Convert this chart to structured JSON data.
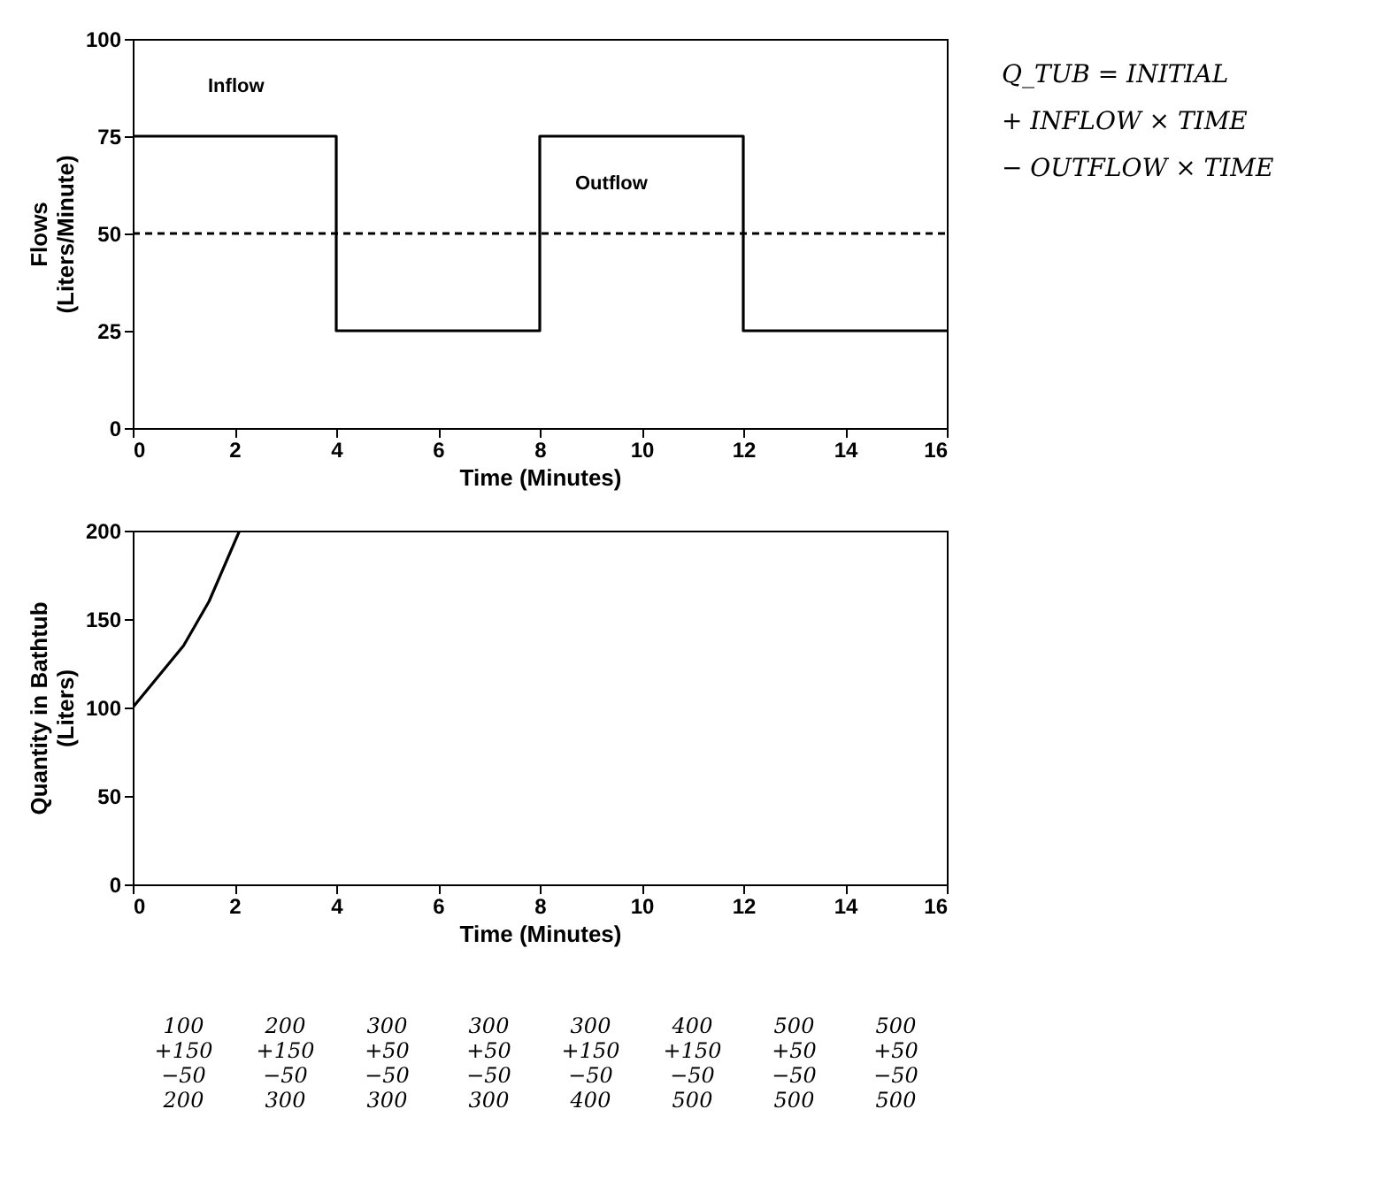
{
  "chart_data": [
    {
      "type": "line",
      "xlabel": "Time (Minutes)",
      "ylabel": "Flows (Liters/Minute)",
      "xlim": [
        0,
        16
      ],
      "xticks": [
        0,
        2,
        4,
        6,
        8,
        10,
        12,
        14,
        16
      ],
      "ylim": [
        0,
        100
      ],
      "yticks": [
        0,
        25,
        50,
        75,
        100
      ],
      "grid": false,
      "marker": "none",
      "series": [
        {
          "name": "Inflow",
          "type": "step",
          "color": "#000000",
          "x": [
            0,
            4,
            8,
            12,
            16
          ],
          "values": [
            75,
            25,
            75,
            25,
            25
          ],
          "line_style": "solid"
        },
        {
          "name": "Outflow",
          "type": "line",
          "color": "#000000",
          "x": [
            0,
            16
          ],
          "values": [
            50,
            50
          ],
          "line_style": "dashed"
        }
      ],
      "annotations": [
        "Q_TUB = INITIAL",
        "+ INFLOW × TIME",
        "− OUTFLOW × TIME"
      ]
    },
    {
      "type": "line",
      "xlabel": "Time (Minutes)",
      "ylabel": "Quantity in Bathtub (Liters)",
      "xlim": [
        0,
        16
      ],
      "xticks": [
        0,
        2,
        4,
        6,
        8,
        10,
        12,
        14,
        16
      ],
      "ylim": [
        0,
        200
      ],
      "yticks": [
        0,
        50,
        100,
        150,
        200
      ],
      "grid": false,
      "marker": "none",
      "series": [
        {
          "color": "#000000",
          "x": [
            0,
            1,
            1.5,
            2.1
          ],
          "values": [
            100,
            135,
            160,
            200
          ]
        }
      ],
      "annotations": [
        "100\n+150\n−50\n200",
        "200\n+150\n−50\n300",
        "300\n+50\n−50\n300",
        "300\n+50\n−50\n300",
        "300\n+150\n−50\n400",
        "400\n+150\n−50\n500",
        "500\n+50\n−50\n500",
        "500\n+50\n−50\n500"
      ]
    }
  ]
}
